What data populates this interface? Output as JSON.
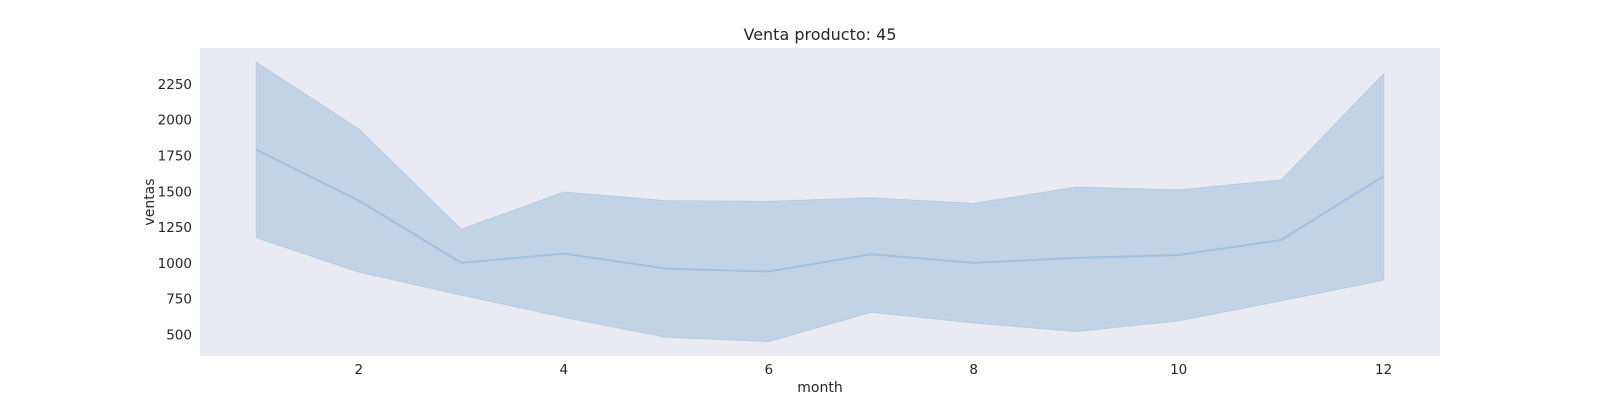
{
  "chart_data": {
    "type": "line",
    "title": "Venta producto: 45",
    "xlabel": "month",
    "ylabel": "ventas",
    "x": [
      1,
      2,
      3,
      4,
      5,
      6,
      7,
      8,
      9,
      10,
      11,
      12
    ],
    "series": [
      {
        "values": [
          1790,
          1435,
          1000,
          1065,
          960,
          940,
          1060,
          1000,
          1035,
          1055,
          1160,
          1605
        ],
        "ci_upper": [
          2400,
          1935,
          1235,
          1495,
          1435,
          1430,
          1455,
          1415,
          1530,
          1510,
          1580,
          2320
        ],
        "ci_lower": [
          1175,
          935,
          775,
          620,
          480,
          450,
          655,
          580,
          520,
          595,
          735,
          880
        ]
      }
    ],
    "xlim": [
      0.45,
      12.55
    ],
    "ylim": [
      350,
      2500
    ],
    "xticks": [
      2,
      4,
      6,
      8,
      10,
      12
    ],
    "yticks": [
      500,
      750,
      1000,
      1250,
      1500,
      1750,
      2000,
      2250
    ],
    "grid": false,
    "colors": {
      "plot_background": "#eaeaf2",
      "line": "#a3c1de",
      "band": "#c2d3e5"
    }
  }
}
